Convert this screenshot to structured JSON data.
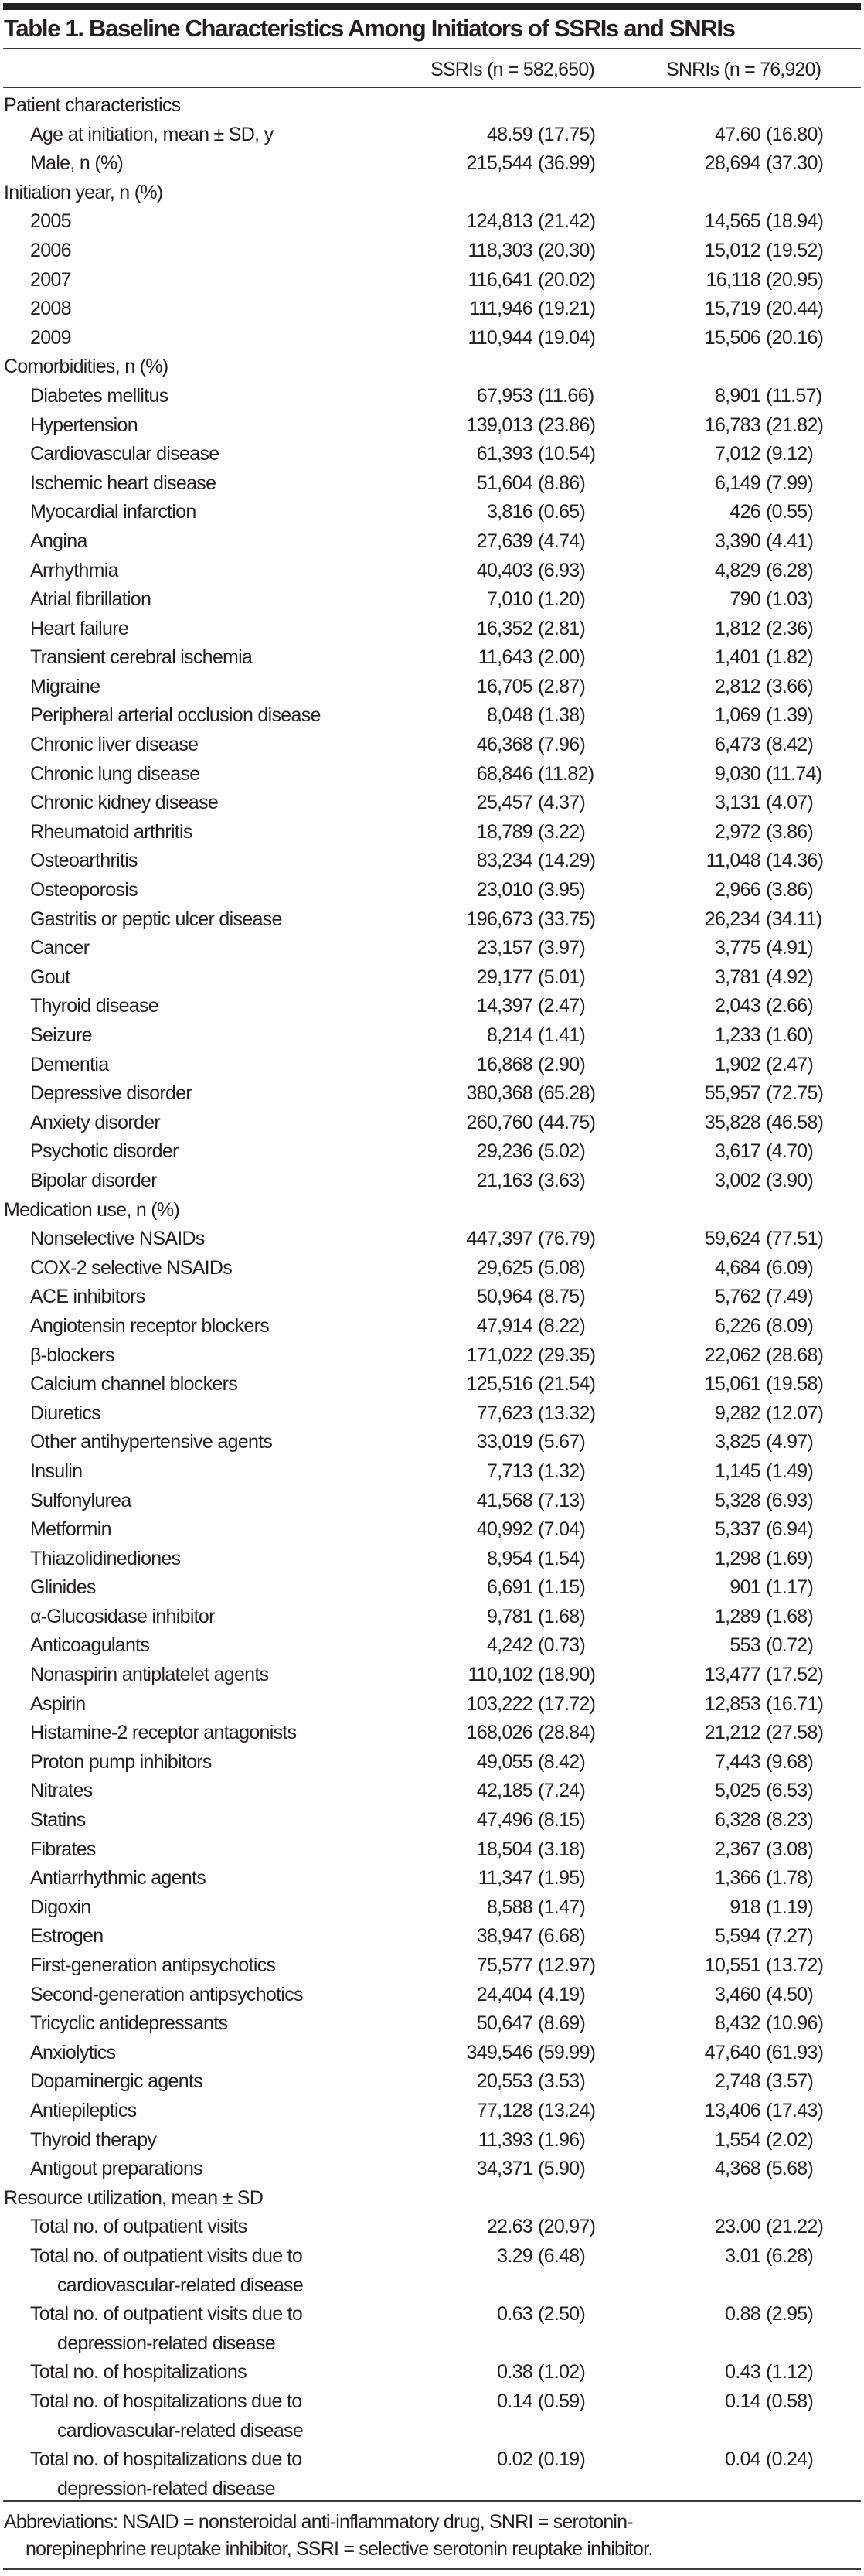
{
  "title": "Table 1. Baseline Characteristics Among Initiators of SSRIs and SNRIs",
  "columns": {
    "ssri": "SSRIs (n = 582,650)",
    "snri": "SNRIs (n = 76,920)"
  },
  "rows": [
    [
      "h",
      "Patient characteristics"
    ],
    [
      "i",
      "Age at initiation, mean ± SD, y",
      "48.59",
      "(17.75)",
      "47.60",
      "(16.80)"
    ],
    [
      "i",
      "Male, n (%)",
      "215,544",
      "(36.99)",
      "28,694",
      "(37.30)"
    ],
    [
      "h",
      "Initiation year, n (%)"
    ],
    [
      "i",
      "2005",
      "124,813",
      "(21.42)",
      "14,565",
      "(18.94)"
    ],
    [
      "i",
      "2006",
      "118,303",
      "(20.30)",
      "15,012",
      "(19.52)"
    ],
    [
      "i",
      "2007",
      "116,641",
      "(20.02)",
      "16,118",
      "(20.95)"
    ],
    [
      "i",
      "2008",
      "111,946",
      "(19.21)",
      "15,719",
      "(20.44)"
    ],
    [
      "i",
      "2009",
      "110,944",
      "(19.04)",
      "15,506",
      "(20.16)"
    ],
    [
      "h",
      "Comorbidities, n (%)"
    ],
    [
      "i",
      "Diabetes mellitus",
      "67,953",
      "(11.66)",
      "8,901",
      "(11.57)"
    ],
    [
      "i",
      "Hypertension",
      "139,013",
      "(23.86)",
      "16,783",
      "(21.82)"
    ],
    [
      "i",
      "Cardiovascular disease",
      "61,393",
      "(10.54)",
      "7,012",
      "(9.12)"
    ],
    [
      "i",
      "Ischemic heart disease",
      "51,604",
      "(8.86)",
      "6,149",
      "(7.99)"
    ],
    [
      "i",
      "Myocardial infarction",
      "3,816",
      "(0.65)",
      "426",
      "(0.55)"
    ],
    [
      "i",
      "Angina",
      "27,639",
      "(4.74)",
      "3,390",
      "(4.41)"
    ],
    [
      "i",
      "Arrhythmia",
      "40,403",
      "(6.93)",
      "4,829",
      "(6.28)"
    ],
    [
      "i",
      "Atrial fibrillation",
      "7,010",
      "(1.20)",
      "790",
      "(1.03)"
    ],
    [
      "i",
      "Heart failure",
      "16,352",
      "(2.81)",
      "1,812",
      "(2.36)"
    ],
    [
      "i",
      "Transient cerebral ischemia",
      "11,643",
      "(2.00)",
      "1,401",
      "(1.82)"
    ],
    [
      "i",
      "Migraine",
      "16,705",
      "(2.87)",
      "2,812",
      "(3.66)"
    ],
    [
      "i",
      "Peripheral arterial occlusion disease",
      "8,048",
      "(1.38)",
      "1,069",
      "(1.39)"
    ],
    [
      "i",
      "Chronic liver disease",
      "46,368",
      "(7.96)",
      "6,473",
      "(8.42)"
    ],
    [
      "i",
      "Chronic lung disease",
      "68,846",
      "(11.82)",
      "9,030",
      "(11.74)"
    ],
    [
      "i",
      "Chronic kidney disease",
      "25,457",
      "(4.37)",
      "3,131",
      "(4.07)"
    ],
    [
      "i",
      "Rheumatoid arthritis",
      "18,789",
      "(3.22)",
      "2,972",
      "(3.86)"
    ],
    [
      "i",
      "Osteoarthritis",
      "83,234",
      "(14.29)",
      "11,048",
      "(14.36)"
    ],
    [
      "i",
      "Osteoporosis",
      "23,010",
      "(3.95)",
      "2,966",
      "(3.86)"
    ],
    [
      "i",
      "Gastritis or peptic ulcer disease",
      "196,673",
      "(33.75)",
      "26,234",
      "(34.11)"
    ],
    [
      "i",
      "Cancer",
      "23,157",
      "(3.97)",
      "3,775",
      "(4.91)"
    ],
    [
      "i",
      "Gout",
      "29,177",
      "(5.01)",
      "3,781",
      "(4.92)"
    ],
    [
      "i",
      "Thyroid disease",
      "14,397",
      "(2.47)",
      "2,043",
      "(2.66)"
    ],
    [
      "i",
      "Seizure",
      "8,214",
      "(1.41)",
      "1,233",
      "(1.60)"
    ],
    [
      "i",
      "Dementia",
      "16,868",
      "(2.90)",
      "1,902",
      "(2.47)"
    ],
    [
      "i",
      "Depressive disorder",
      "380,368",
      "(65.28)",
      "55,957",
      "(72.75)"
    ],
    [
      "i",
      "Anxiety disorder",
      "260,760",
      "(44.75)",
      "35,828",
      "(46.58)"
    ],
    [
      "i",
      "Psychotic disorder",
      "29,236",
      "(5.02)",
      "3,617",
      "(4.70)"
    ],
    [
      "i",
      "Bipolar disorder",
      "21,163",
      "(3.63)",
      "3,002",
      "(3.90)"
    ],
    [
      "h",
      "Medication use, n (%)"
    ],
    [
      "i",
      "Nonselective NSAIDs",
      "447,397",
      "(76.79)",
      "59,624",
      "(77.51)"
    ],
    [
      "i",
      "COX-2 selective NSAIDs",
      "29,625",
      "(5.08)",
      "4,684",
      "(6.09)"
    ],
    [
      "i",
      "ACE inhibitors",
      "50,964",
      "(8.75)",
      "5,762",
      "(7.49)"
    ],
    [
      "i",
      "Angiotensin receptor blockers",
      "47,914",
      "(8.22)",
      "6,226",
      "(8.09)"
    ],
    [
      "i",
      "β-blockers",
      "171,022",
      "(29.35)",
      "22,062",
      "(28.68)"
    ],
    [
      "i",
      "Calcium channel blockers",
      "125,516",
      "(21.54)",
      "15,061",
      "(19.58)"
    ],
    [
      "i",
      "Diuretics",
      "77,623",
      "(13.32)",
      "9,282",
      "(12.07)"
    ],
    [
      "i",
      "Other antihypertensive agents",
      "33,019",
      "(5.67)",
      "3,825",
      "(4.97)"
    ],
    [
      "i",
      "Insulin",
      "7,713",
      "(1.32)",
      "1,145",
      "(1.49)"
    ],
    [
      "i",
      "Sulfonylurea",
      "41,568",
      "(7.13)",
      "5,328",
      "(6.93)"
    ],
    [
      "i",
      "Metformin",
      "40,992",
      "(7.04)",
      "5,337",
      "(6.94)"
    ],
    [
      "i",
      "Thiazolidinediones",
      "8,954",
      "(1.54)",
      "1,298",
      "(1.69)"
    ],
    [
      "i",
      "Glinides",
      "6,691",
      "(1.15)",
      "901",
      "(1.17)"
    ],
    [
      "i",
      "α-Glucosidase inhibitor",
      "9,781",
      "(1.68)",
      "1,289",
      "(1.68)"
    ],
    [
      "i",
      "Anticoagulants",
      "4,242",
      "(0.73)",
      "553",
      "(0.72)"
    ],
    [
      "i",
      "Nonaspirin antiplatelet agents",
      "110,102",
      "(18.90)",
      "13,477",
      "(17.52)"
    ],
    [
      "i",
      "Aspirin",
      "103,222",
      "(17.72)",
      "12,853",
      "(16.71)"
    ],
    [
      "i",
      "Histamine-2 receptor antagonists",
      "168,026",
      "(28.84)",
      "21,212",
      "(27.58)"
    ],
    [
      "i",
      "Proton pump inhibitors",
      "49,055",
      "(8.42)",
      "7,443",
      "(9.68)"
    ],
    [
      "i",
      "Nitrates",
      "42,185",
      "(7.24)",
      "5,025",
      "(6.53)"
    ],
    [
      "i",
      "Statins",
      "47,496",
      "(8.15)",
      "6,328",
      "(8.23)"
    ],
    [
      "i",
      "Fibrates",
      "18,504",
      "(3.18)",
      "2,367",
      "(3.08)"
    ],
    [
      "i",
      "Antiarrhythmic agents",
      "11,347",
      "(1.95)",
      "1,366",
      "(1.78)"
    ],
    [
      "i",
      "Digoxin",
      "8,588",
      "(1.47)",
      "918",
      "(1.19)"
    ],
    [
      "i",
      "Estrogen",
      "38,947",
      "(6.68)",
      "5,594",
      "(7.27)"
    ],
    [
      "i",
      "First-generation antipsychotics",
      "75,577",
      "(12.97)",
      "10,551",
      "(13.72)"
    ],
    [
      "i",
      "Second-generation antipsychotics",
      "24,404",
      "(4.19)",
      "3,460",
      "(4.50)"
    ],
    [
      "i",
      "Tricyclic antidepressants",
      "50,647",
      "(8.69)",
      "8,432",
      "(10.96)"
    ],
    [
      "i",
      "Anxiolytics",
      "349,546",
      "(59.99)",
      "47,640",
      "(61.93)"
    ],
    [
      "i",
      "Dopaminergic agents",
      "20,553",
      "(3.53)",
      "2,748",
      "(3.57)"
    ],
    [
      "i",
      "Antiepileptics",
      "77,128",
      "(13.24)",
      "13,406",
      "(17.43)"
    ],
    [
      "i",
      "Thyroid therapy",
      "11,393",
      "(1.96)",
      "1,554",
      "(2.02)"
    ],
    [
      "i",
      "Antigout preparations",
      "34,371",
      "(5.90)",
      "4,368",
      "(5.68)"
    ],
    [
      "h",
      "Resource utilization, mean ± SD"
    ],
    [
      "i",
      "Total no. of outpatient visits",
      "22.63",
      "(20.97)",
      "23.00",
      "(21.22)"
    ],
    [
      "i2",
      "Total no. of outpatient visits due to\ncardiovascular-related disease",
      "3.29",
      "(6.48)",
      "3.01",
      "(6.28)"
    ],
    [
      "i2",
      "Total no. of outpatient visits due to\ndepression-related disease",
      "0.63",
      "(2.50)",
      "0.88",
      "(2.95)"
    ],
    [
      "i",
      "Total no. of hospitalizations",
      "0.38",
      "(1.02)",
      "0.43",
      "(1.12)"
    ],
    [
      "i2",
      "Total no. of hospitalizations due to\ncardiovascular-related disease",
      "0.14",
      "(0.59)",
      "0.14",
      "(0.58)"
    ],
    [
      "i2",
      "Total no. of hospitalizations due to\ndepression-related disease",
      "0.02",
      "(0.19)",
      "0.04",
      "(0.24)"
    ]
  ],
  "footnote": {
    "line1": "Abbreviations: NSAID = nonsteroidal anti-inflammatory drug, SNRI = serotonin-",
    "line2": "norepinephrine reuptake inhibitor, SSRI = selective serotonin reuptake inhibitor."
  }
}
